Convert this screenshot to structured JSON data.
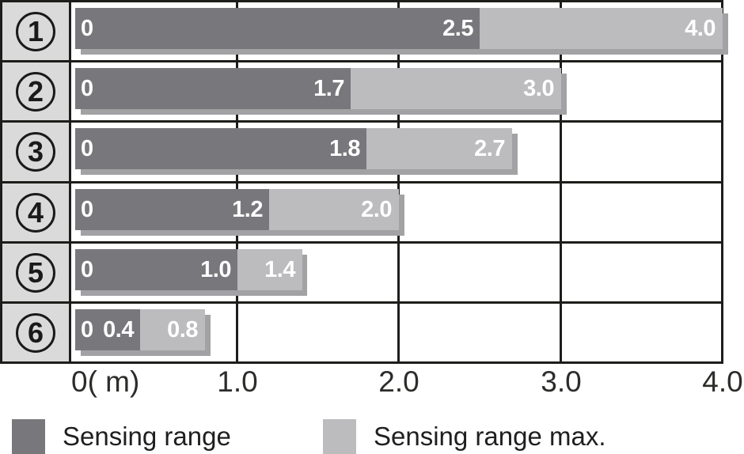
{
  "chart_data": {
    "type": "bar",
    "orientation": "horizontal",
    "title": "",
    "xlabel_unit": "m",
    "xlim": [
      0,
      4.0
    ],
    "grid": true,
    "categories": [
      "1",
      "2",
      "3",
      "4",
      "5",
      "6"
    ],
    "rows": [
      {
        "index": "1",
        "zero_label": "0",
        "sensing_range": 2.5,
        "sensing_range_max": 4.0,
        "sensing_range_label": "2.5",
        "sensing_range_max_label": "4.0"
      },
      {
        "index": "2",
        "zero_label": "0",
        "sensing_range": 1.7,
        "sensing_range_max": 3.0,
        "sensing_range_label": "1.7",
        "sensing_range_max_label": "3.0"
      },
      {
        "index": "3",
        "zero_label": "0",
        "sensing_range": 1.8,
        "sensing_range_max": 2.7,
        "sensing_range_label": "1.8",
        "sensing_range_max_label": "2.7"
      },
      {
        "index": "4",
        "zero_label": "0",
        "sensing_range": 1.2,
        "sensing_range_max": 2.0,
        "sensing_range_label": "1.2",
        "sensing_range_max_label": "2.0"
      },
      {
        "index": "5",
        "zero_label": "0",
        "sensing_range": 1.0,
        "sensing_range_max": 1.4,
        "sensing_range_label": "1.0",
        "sensing_range_max_label": "1.4"
      },
      {
        "index": "6",
        "zero_label": "0",
        "sensing_range": 0.4,
        "sensing_range_max": 0.8,
        "sensing_range_label": "0.4",
        "sensing_range_max_label": "0.8"
      }
    ],
    "x_ticks": [
      {
        "value": 0,
        "label": "0( m)"
      },
      {
        "value": 1,
        "label": "1.0"
      },
      {
        "value": 2,
        "label": "2.0"
      },
      {
        "value": 3,
        "label": "3.0"
      },
      {
        "value": 4,
        "label": "4.0"
      }
    ],
    "legend": [
      {
        "key": "sensing_range",
        "label": "Sensing range",
        "color": "#78787c"
      },
      {
        "key": "sensing_range_max",
        "label": "Sensing range max.",
        "color": "#bcbcbe"
      }
    ],
    "legend_position": "bottom"
  },
  "colors": {
    "bar_dark": "#78787c",
    "bar_light": "#bcbcbe",
    "bar_shadow": "#a2a2a5",
    "row_header_bg": "#dadada",
    "line": "#1d1d1b",
    "bar_text": "#ffffff",
    "axis_text": "#2c2c2a"
  }
}
